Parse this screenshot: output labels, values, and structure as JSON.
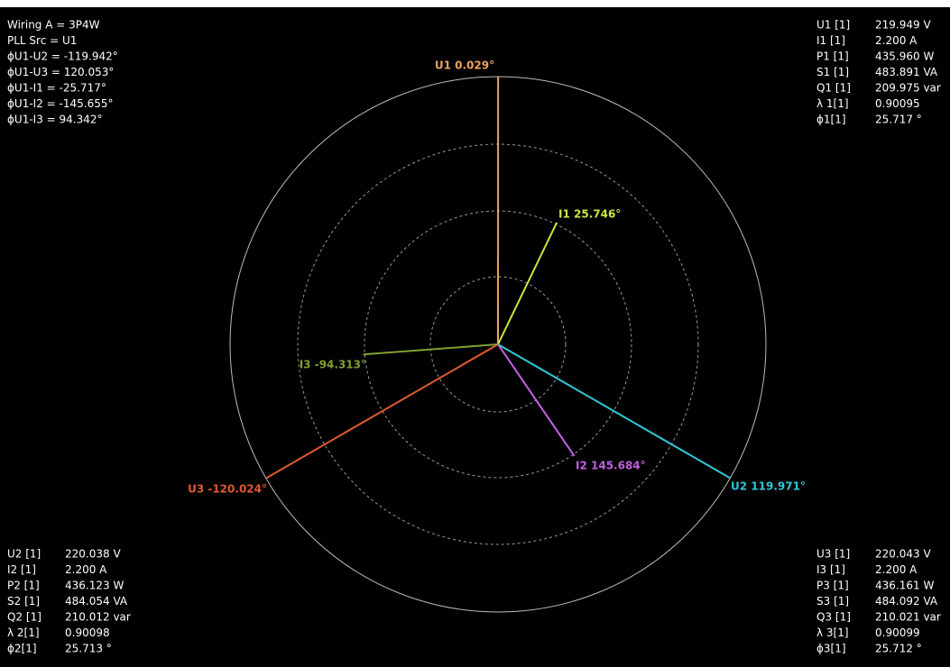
{
  "top_left": [
    "Wiring A  =  3P4W",
    "PLL Src  =  U1",
    "ϕU1-U2  =  -119.942°",
    "ϕU1-U3  =  120.053°",
    "ϕU1-I1   =  -25.717°",
    "ϕU1-I2   =  -145.655°",
    "ϕU1-I3   =  94.342°"
  ],
  "top_right": [
    [
      "U1 [1]",
      "219.949 V"
    ],
    [
      "I1  [1]",
      "2.200 A"
    ],
    [
      "P1 [1]",
      "435.960 W"
    ],
    [
      "S1 [1]",
      "483.891 VA"
    ],
    [
      "Q1 [1]",
      "209.975 var"
    ],
    [
      "λ 1[1]",
      "0.90095"
    ],
    [
      "ϕ1[1]",
      "25.717 °"
    ]
  ],
  "bottom_left": [
    [
      "U2 [1]",
      "220.038 V"
    ],
    [
      "I2  [1]",
      "2.200 A"
    ],
    [
      "P2 [1]",
      "436.123 W"
    ],
    [
      "S2 [1]",
      "484.054 VA"
    ],
    [
      "Q2 [1]",
      "210.012 var"
    ],
    [
      "λ 2[1]",
      "0.90098"
    ],
    [
      "ϕ2[1]",
      "25.713 °"
    ]
  ],
  "bottom_right": [
    [
      "U3 [1]",
      "220.043 V"
    ],
    [
      "I3  [1]",
      "2.200 A"
    ],
    [
      "P3 [1]",
      "436.161 W"
    ],
    [
      "S3 [1]",
      "484.092 VA"
    ],
    [
      "Q3 [1]",
      "210.021 var"
    ],
    [
      "λ 3[1]",
      "0.90099"
    ],
    [
      "ϕ3[1]",
      "25.712 °"
    ]
  ],
  "phasors": [
    {
      "label": "U1 0.029°",
      "angle": 0.029,
      "color": "#f0a060"
    },
    {
      "label": "U2 119.971°",
      "angle": 119.971,
      "color": "#30c8d8"
    },
    {
      "label": "U3 -120.024°",
      "angle": -120.024,
      "color": "#e05a30"
    },
    {
      "label": "I1 25.746°",
      "angle": 25.746,
      "color": "#c8e840"
    },
    {
      "label": "I2 145.684°",
      "angle": 145.684,
      "color": "#c060e0"
    },
    {
      "label": "I3 -94.313°",
      "angle": -94.313,
      "color": "#80a030"
    }
  ]
}
